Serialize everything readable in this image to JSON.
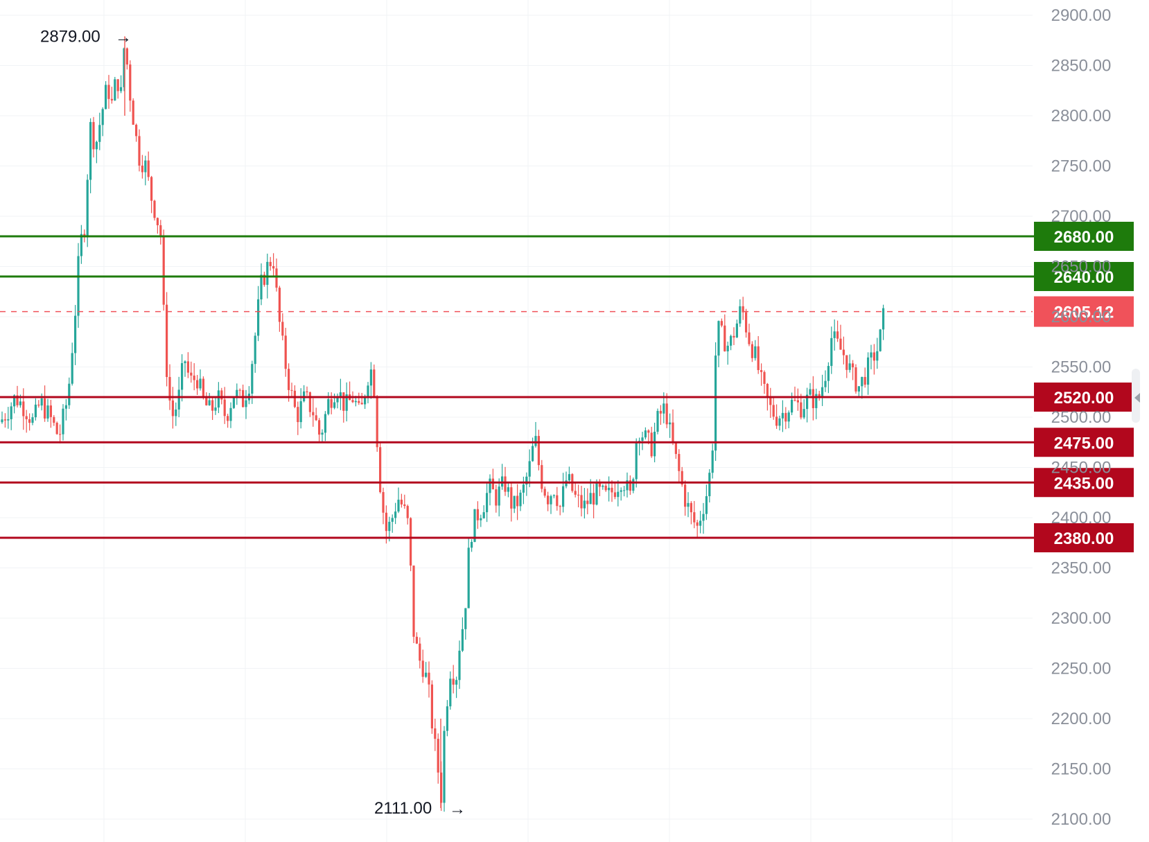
{
  "chart_data": {
    "type": "candlestick",
    "y_axis": {
      "min": 2100,
      "max": 2900,
      "ticks": [
        "2100.00",
        "2150.00",
        "2200.00",
        "2250.00",
        "2300.00",
        "2350.00",
        "2400.00",
        "2450.00",
        "2500.00",
        "2550.00",
        "2600.00",
        "2650.00",
        "2700.00",
        "2750.00",
        "2800.00",
        "2850.00",
        "2900.00"
      ],
      "position": "right"
    },
    "grid": true,
    "levels": [
      {
        "value": 2680,
        "label": "2680.00",
        "kind": "resistance",
        "color": "#1e7b0c"
      },
      {
        "value": 2640,
        "label": "2640.00",
        "kind": "resistance",
        "color": "#1e7b0c"
      },
      {
        "value": 2520,
        "label": "2520.00",
        "kind": "support",
        "color": "#b2071d"
      },
      {
        "value": 2475,
        "label": "2475.00",
        "kind": "support",
        "color": "#b2071d"
      },
      {
        "value": 2435,
        "label": "2435.00",
        "kind": "support",
        "color": "#b2071d"
      },
      {
        "value": 2380,
        "label": "2380.00",
        "kind": "support",
        "color": "#b2071d"
      }
    ],
    "last_price": {
      "value": 2605.12,
      "label": "2605.12",
      "color": "#f0525a"
    },
    "annotations": [
      {
        "text": "2879.00",
        "value": 2879,
        "kind": "high"
      },
      {
        "text": "2111.00",
        "value": 2111,
        "kind": "low"
      }
    ],
    "colors": {
      "up": "#26a69a",
      "down": "#ef5350",
      "grid": "#f1f3f6",
      "axis_text": "#8a8f99"
    },
    "path": [
      [
        0,
        2495
      ],
      [
        10,
        2505
      ],
      [
        22,
        2520
      ],
      [
        35,
        2510
      ],
      [
        48,
        2495
      ],
      [
        58,
        2515
      ],
      [
        72,
        2500
      ],
      [
        85,
        2480
      ],
      [
        98,
        2520
      ],
      [
        108,
        2600
      ],
      [
        115,
        2670
      ],
      [
        122,
        2690
      ],
      [
        130,
        2790
      ],
      [
        138,
        2770
      ],
      [
        146,
        2800
      ],
      [
        155,
        2830
      ],
      [
        162,
        2810
      ],
      [
        168,
        2840
      ],
      [
        175,
        2820
      ],
      [
        180,
        2879
      ],
      [
        186,
        2830
      ],
      [
        192,
        2800
      ],
      [
        200,
        2760
      ],
      [
        210,
        2750
      ],
      [
        218,
        2720
      ],
      [
        226,
        2700
      ],
      [
        232,
        2680
      ],
      [
        238,
        2570
      ],
      [
        244,
        2520
      ],
      [
        250,
        2500
      ],
      [
        258,
        2520
      ],
      [
        266,
        2560
      ],
      [
        274,
        2535
      ],
      [
        284,
        2540
      ],
      [
        294,
        2515
      ],
      [
        304,
        2505
      ],
      [
        314,
        2520
      ],
      [
        326,
        2500
      ],
      [
        338,
        2525
      ],
      [
        350,
        2515
      ],
      [
        360,
        2535
      ],
      [
        368,
        2580
      ],
      [
        376,
        2630
      ],
      [
        386,
        2650
      ],
      [
        394,
        2660
      ],
      [
        402,
        2600
      ],
      [
        410,
        2560
      ],
      [
        418,
        2530
      ],
      [
        428,
        2500
      ],
      [
        440,
        2520
      ],
      [
        452,
        2505
      ],
      [
        462,
        2480
      ],
      [
        474,
        2515
      ],
      [
        486,
        2530
      ],
      [
        498,
        2510
      ],
      [
        510,
        2520
      ],
      [
        520,
        2500
      ],
      [
        530,
        2540
      ],
      [
        538,
        2550
      ],
      [
        544,
        2480
      ],
      [
        550,
        2420
      ],
      [
        558,
        2385
      ],
      [
        566,
        2400
      ],
      [
        574,
        2420
      ],
      [
        582,
        2410
      ],
      [
        590,
        2390
      ],
      [
        596,
        2290
      ],
      [
        604,
        2260
      ],
      [
        612,
        2250
      ],
      [
        618,
        2230
      ],
      [
        626,
        2180
      ],
      [
        632,
        2150
      ],
      [
        636,
        2115
      ],
      [
        642,
        2200
      ],
      [
        650,
        2250
      ],
      [
        658,
        2240
      ],
      [
        664,
        2280
      ],
      [
        670,
        2300
      ],
      [
        678,
        2380
      ],
      [
        686,
        2400
      ],
      [
        696,
        2410
      ],
      [
        706,
        2430
      ],
      [
        716,
        2420
      ],
      [
        728,
        2435
      ],
      [
        740,
        2410
      ],
      [
        752,
        2420
      ],
      [
        764,
        2450
      ],
      [
        772,
        2480
      ],
      [
        780,
        2440
      ],
      [
        790,
        2420
      ],
      [
        800,
        2430
      ],
      [
        808,
        2410
      ],
      [
        818,
        2440
      ],
      [
        830,
        2420
      ],
      [
        842,
        2410
      ],
      [
        852,
        2420
      ],
      [
        864,
        2425
      ],
      [
        876,
        2420
      ],
      [
        888,
        2430
      ],
      [
        898,
        2440
      ],
      [
        910,
        2420
      ],
      [
        920,
        2490
      ],
      [
        930,
        2480
      ],
      [
        940,
        2470
      ],
      [
        950,
        2500
      ],
      [
        960,
        2510
      ],
      [
        968,
        2480
      ],
      [
        978,
        2450
      ],
      [
        988,
        2420
      ],
      [
        998,
        2400
      ],
      [
        1006,
        2390
      ],
      [
        1014,
        2410
      ],
      [
        1022,
        2430
      ],
      [
        1028,
        2470
      ],
      [
        1034,
        2590
      ],
      [
        1042,
        2580
      ],
      [
        1052,
        2570
      ],
      [
        1062,
        2590
      ],
      [
        1070,
        2610
      ],
      [
        1080,
        2580
      ],
      [
        1090,
        2560
      ],
      [
        1100,
        2530
      ],
      [
        1110,
        2510
      ],
      [
        1120,
        2500
      ],
      [
        1132,
        2505
      ],
      [
        1144,
        2515
      ],
      [
        1156,
        2510
      ],
      [
        1168,
        2520
      ],
      [
        1180,
        2515
      ],
      [
        1190,
        2540
      ],
      [
        1200,
        2580
      ],
      [
        1210,
        2570
      ],
      [
        1220,
        2560
      ],
      [
        1230,
        2540
      ],
      [
        1240,
        2530
      ],
      [
        1250,
        2545
      ],
      [
        1260,
        2560
      ],
      [
        1268,
        2570
      ],
      [
        1276,
        2605
      ]
    ]
  }
}
